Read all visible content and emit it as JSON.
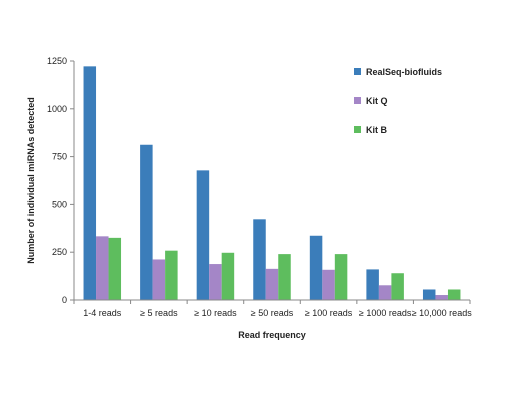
{
  "chart_data": {
    "type": "bar",
    "categories": [
      "1-4 reads",
      "≥ 5 reads",
      "≥ 10 reads",
      "≥ 50 reads",
      "≥ 100 reads",
      "≥ 1000 reads",
      "≥ 10,000 reads"
    ],
    "series": [
      {
        "name": "RealSeq-biofluids",
        "color": "#3b7dba",
        "values": [
          1222,
          812,
          678,
          422,
          336,
          160,
          55
        ]
      },
      {
        "name": "Kit Q",
        "color": "#a486c7",
        "values": [
          333,
          212,
          188,
          163,
          158,
          77,
          26
        ]
      },
      {
        "name": "Kit B",
        "color": "#5ebd5e",
        "values": [
          325,
          258,
          247,
          240,
          240,
          140,
          55
        ]
      }
    ],
    "xlabel": "Read frequency",
    "ylabel": "Number of individual miRNAs detected",
    "ylim": [
      0,
      1250
    ],
    "yticks": [
      0,
      250,
      500,
      750,
      1000,
      1250
    ],
    "grid": false,
    "legend_position": "top-right"
  }
}
